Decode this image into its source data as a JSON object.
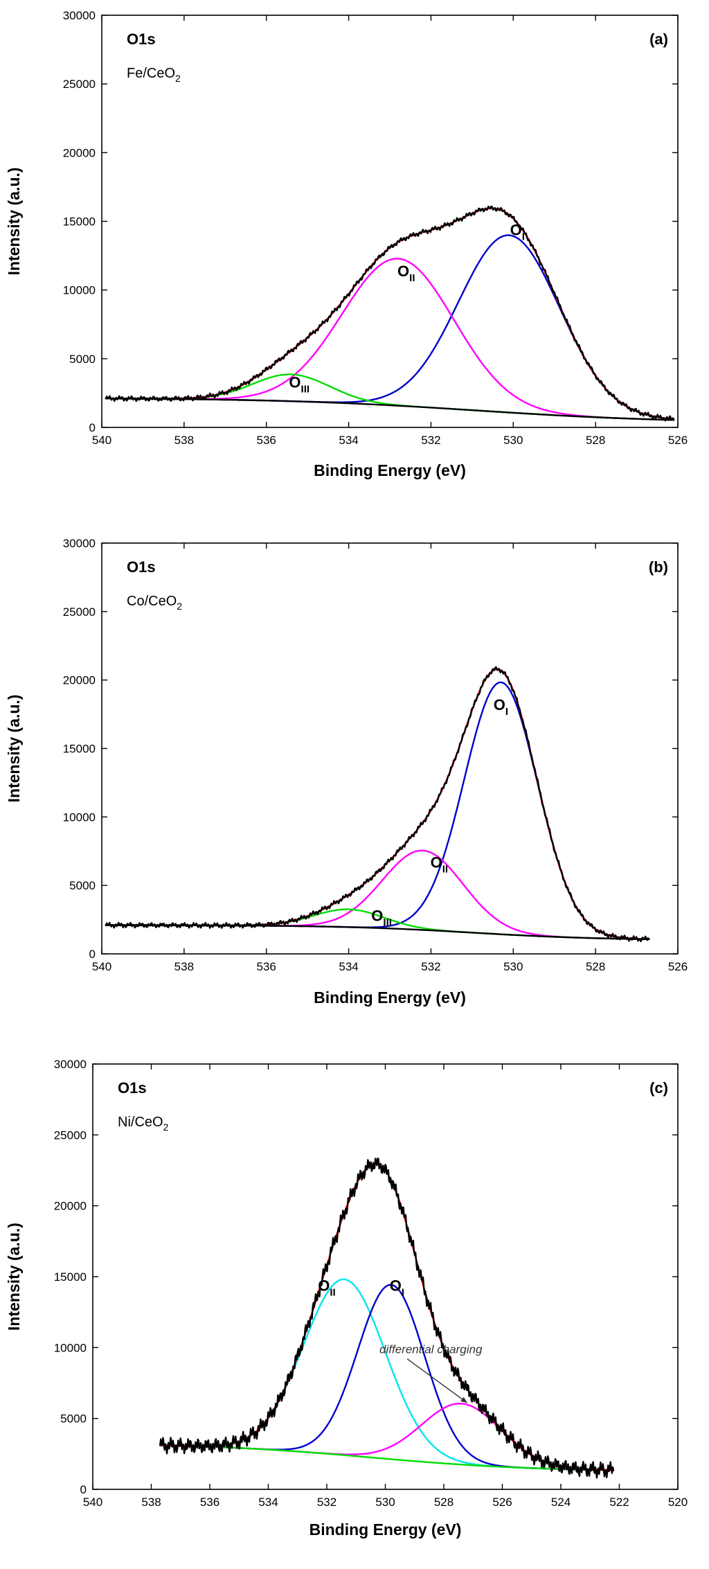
{
  "chart_data": [
    {
      "type": "line",
      "panel_label": "(a)",
      "core_level": "O1s",
      "sample": {
        "prefix": "Fe/CeO",
        "sub": "2"
      },
      "xlabel": "Binding Energy (eV)",
      "ylabel": "Intensity (a.u.)",
      "xlim": [
        540,
        526
      ],
      "ylim": [
        0,
        30000
      ],
      "x_ticks": [
        540,
        538,
        536,
        534,
        532,
        530,
        528,
        526
      ],
      "y_ticks": [
        0,
        5000,
        10000,
        15000,
        20000,
        25000,
        30000
      ],
      "x_range": [
        539.9,
        526.1
      ],
      "background": {
        "start": 2150,
        "end": 320,
        "step_center": 530.9,
        "step_width": 2.4
      },
      "series": [
        {
          "color": "#0000cc",
          "role": "component",
          "peak": {
            "center": 530.1,
            "height": 12900,
            "fwhm": 2.9
          }
        },
        {
          "color": "#ff00ff",
          "role": "component",
          "peak": {
            "center": 532.8,
            "height": 10700,
            "fwhm": 3.2
          }
        },
        {
          "color": "#00dd00",
          "role": "component",
          "peak": {
            "center": 535.4,
            "height": 1950,
            "fwhm": 2.2
          }
        },
        {
          "color": "#ee0000",
          "role": "envelope"
        },
        {
          "color": "#000000",
          "role": "experimental",
          "noise": 160
        }
      ],
      "peak_labels": [
        {
          "main": "O",
          "sub": "I",
          "x": 529.9,
          "y": 14000
        },
        {
          "main": "O",
          "sub": "II",
          "x": 532.6,
          "y": 11000
        },
        {
          "main": "O",
          "sub": "III",
          "x": 535.2,
          "y": 2900
        }
      ]
    },
    {
      "type": "line",
      "panel_label": "(b)",
      "core_level": "O1s",
      "sample": {
        "prefix": "Co/CeO",
        "sub": "2"
      },
      "xlabel": "Binding Energy (eV)",
      "ylabel": "Intensity (a.u.)",
      "xlim": [
        540,
        526
      ],
      "ylim": [
        0,
        30000
      ],
      "x_ticks": [
        540,
        538,
        536,
        534,
        532,
        530,
        528,
        526
      ],
      "y_ticks": [
        0,
        5000,
        10000,
        15000,
        20000,
        25000,
        30000
      ],
      "x_range": [
        539.9,
        526.7
      ],
      "background": {
        "start": 2100,
        "end": 1000,
        "step_center": 531.0,
        "step_width": 1.6
      },
      "series": [
        {
          "color": "#0000cc",
          "role": "component",
          "peak": {
            "center": 530.3,
            "height": 18400,
            "fwhm": 2.1
          }
        },
        {
          "color": "#ff00ff",
          "role": "component",
          "peak": {
            "center": 532.2,
            "height": 5800,
            "fwhm": 2.3
          }
        },
        {
          "color": "#00dd00",
          "role": "component",
          "peak": {
            "center": 534.0,
            "height": 1300,
            "fwhm": 2.0
          }
        },
        {
          "color": "#ee0000",
          "role": "envelope"
        },
        {
          "color": "#000000",
          "role": "experimental",
          "noise": 160
        }
      ],
      "peak_labels": [
        {
          "main": "O",
          "sub": "I",
          "x": 530.3,
          "y": 17800
        },
        {
          "main": "O",
          "sub": "II",
          "x": 531.8,
          "y": 6300
        },
        {
          "main": "O",
          "sub": "III",
          "x": 533.2,
          "y": 2400
        }
      ]
    },
    {
      "type": "line",
      "panel_label": "(c)",
      "core_level": "O1s",
      "sample": {
        "prefix": "Ni/CeO",
        "sub": "2"
      },
      "xlabel": "Binding Energy (eV)",
      "ylabel": "Intensity (a.u.)",
      "xlim": [
        540,
        520
      ],
      "ylim": [
        0,
        30000
      ],
      "x_ticks": [
        540,
        538,
        536,
        534,
        532,
        530,
        528,
        526,
        524,
        522,
        520
      ],
      "y_ticks": [
        0,
        5000,
        10000,
        15000,
        20000,
        25000,
        30000
      ],
      "x_range": [
        537.7,
        522.2
      ],
      "background": {
        "start": 3250,
        "end": 1250,
        "step_center": 530.5,
        "step_width": 2.8
      },
      "series": [
        {
          "color": "#00e5ee",
          "role": "component",
          "peak": {
            "center": 531.4,
            "height": 12400,
            "fwhm": 3.3
          }
        },
        {
          "color": "#0000cc",
          "role": "component",
          "peak": {
            "center": 529.8,
            "height": 12300,
            "fwhm": 2.7
          }
        },
        {
          "color": "#ff00ff",
          "role": "component",
          "peak": {
            "center": 527.4,
            "height": 4300,
            "fwhm": 3.2
          }
        },
        {
          "color": "#00dd00",
          "role": "background"
        },
        {
          "color": "#ee0000",
          "role": "envelope"
        },
        {
          "color": "#000000",
          "role": "experimental",
          "noise": 480
        }
      ],
      "peak_labels": [
        {
          "main": "O",
          "sub": "II",
          "x": 532.0,
          "y": 14000
        },
        {
          "main": "O",
          "sub": "I",
          "x": 529.6,
          "y": 14000
        }
      ],
      "annotation": {
        "text": "differential charging",
        "text_x": 530.2,
        "text_y": 9600,
        "arrow_to_x": 527.2,
        "arrow_to_y": 6100
      }
    }
  ]
}
